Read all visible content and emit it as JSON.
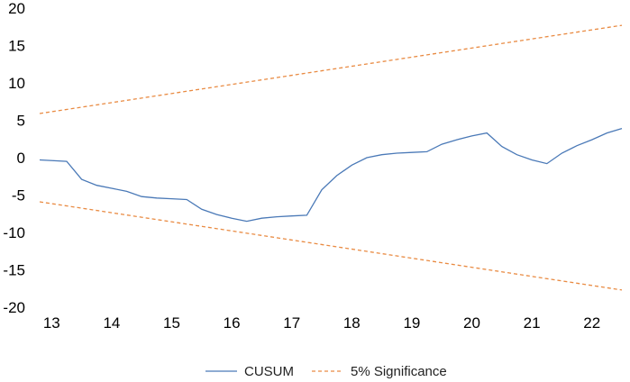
{
  "chart_data": {
    "type": "line",
    "title": "",
    "xlabel": "",
    "ylabel": "",
    "ylim": [
      -20,
      20
    ],
    "xlim": [
      12.8,
      22.5
    ],
    "yticks": [
      "20",
      "15",
      "10",
      "5",
      "0",
      "-5",
      "-10",
      "-15",
      "-20"
    ],
    "xticks": [
      "13",
      "14",
      "15",
      "16",
      "17",
      "18",
      "19",
      "20",
      "21",
      "22"
    ],
    "grid": false,
    "legend_position": "bottom",
    "series": [
      {
        "name": "CUSUM",
        "color": "#4a79b7",
        "style": "solid",
        "x": [
          12.8,
          13.25,
          13.5,
          13.75,
          14.0,
          14.25,
          14.5,
          14.75,
          15.0,
          15.25,
          15.5,
          15.75,
          16.0,
          16.25,
          16.5,
          16.75,
          17.0,
          17.25,
          17.5,
          17.75,
          18.0,
          18.25,
          18.5,
          18.75,
          19.0,
          19.25,
          19.5,
          19.75,
          20.0,
          20.25,
          20.5,
          20.75,
          21.0,
          21.25,
          21.5,
          21.75,
          22.0,
          22.25,
          22.5
        ],
        "values": [
          -0.3,
          -0.5,
          -2.9,
          -3.7,
          -4.1,
          -4.5,
          -5.2,
          -5.4,
          -5.5,
          -5.6,
          -6.9,
          -7.6,
          -8.1,
          -8.5,
          -8.1,
          -7.9,
          -7.8,
          -7.7,
          -4.3,
          -2.4,
          -1.0,
          0.0,
          0.4,
          0.6,
          0.7,
          0.8,
          1.8,
          2.4,
          2.9,
          3.3,
          1.5,
          0.4,
          -0.3,
          -0.8,
          0.6,
          1.6,
          2.4,
          3.3,
          3.9
        ]
      },
      {
        "name": "5% Significance",
        "color": "#e98b43",
        "style": "dashed",
        "x": [
          12.8,
          22.5
        ],
        "values": [
          5.9,
          17.7
        ]
      },
      {
        "name": "",
        "color": "#e98b43",
        "style": "dashed",
        "x": [
          12.8,
          22.5
        ],
        "values": [
          -5.9,
          -17.7
        ]
      }
    ],
    "legend": [
      {
        "label": "CUSUM",
        "color": "#4a79b7",
        "style": "solid"
      },
      {
        "label": "5% Significance",
        "color": "#e98b43",
        "style": "dashed"
      }
    ]
  }
}
